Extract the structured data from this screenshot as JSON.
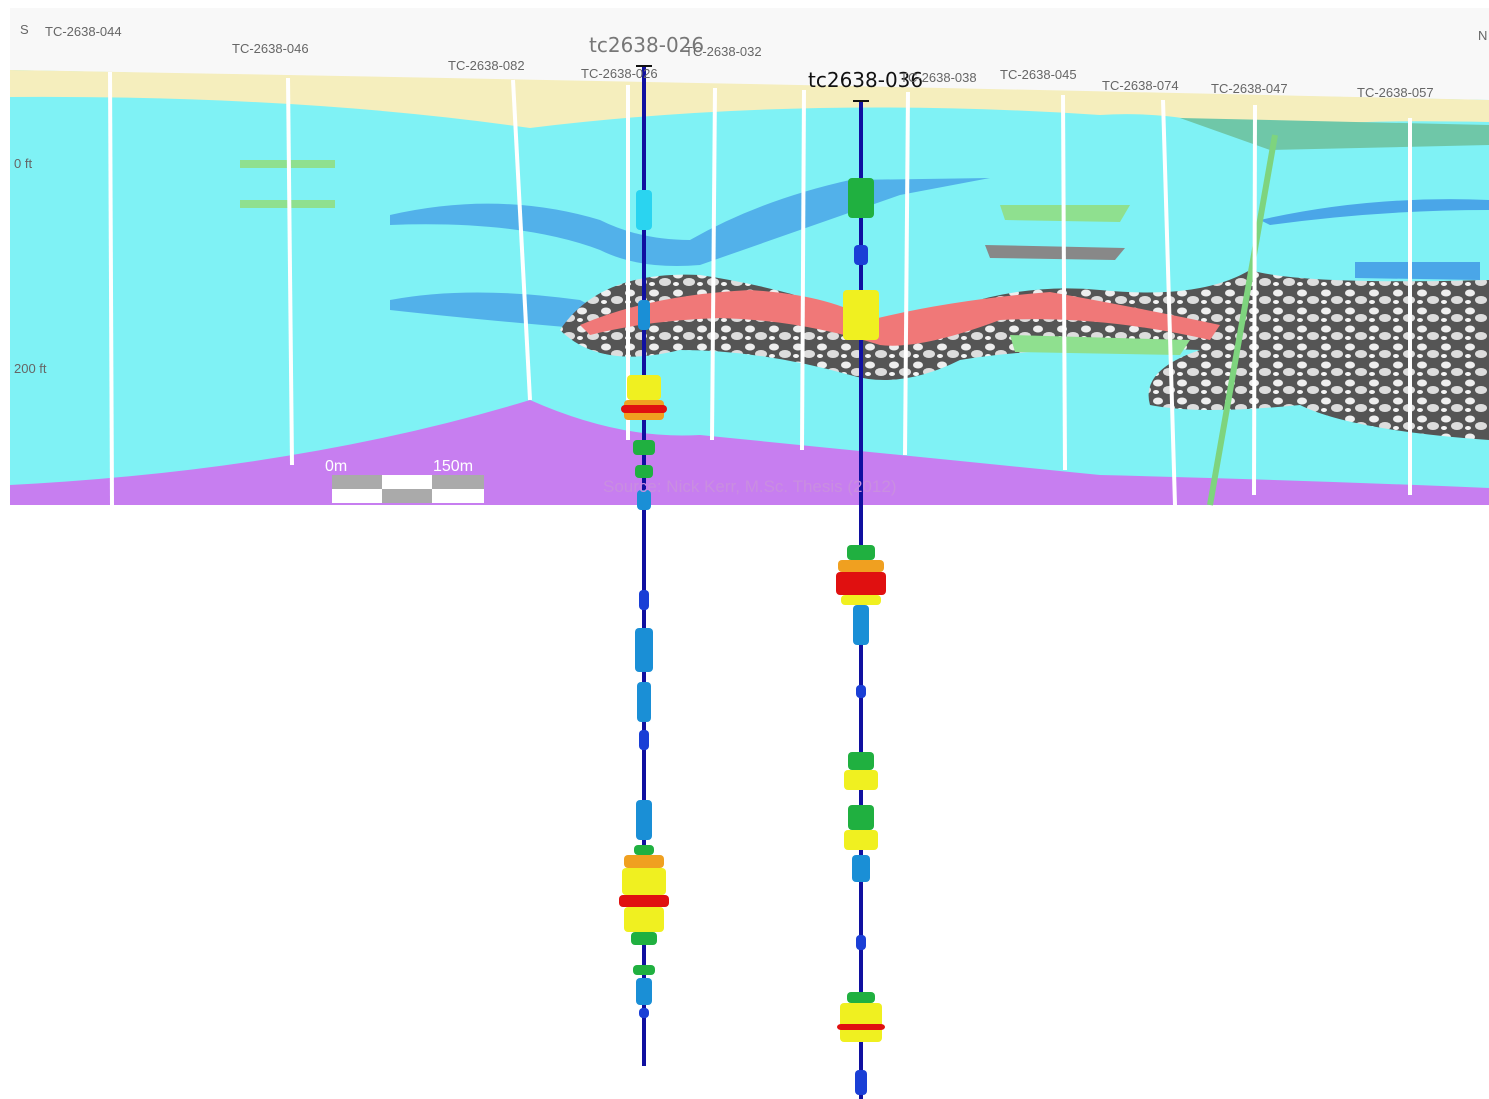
{
  "section": {
    "direction_left": "S",
    "direction_right": "N",
    "holes": [
      "TC-2638-044",
      "TC-2638-046",
      "TC-2638-082",
      "TC-2638-026",
      "TC-2638-032",
      "TC-2638-038",
      "TC-2638-045",
      "TC-2638-074",
      "TC-2638-047",
      "TC-2638-057"
    ],
    "depth_labels": [
      "0 ft",
      "200 ft"
    ],
    "scale": {
      "start": "0m",
      "end": "150m"
    },
    "source": "Source: Nick Kerr, M.Sc. Thesis (2012)"
  },
  "drillholes": [
    {
      "label": "tc2638-026"
    },
    {
      "label": "tc2638-036"
    }
  ]
}
